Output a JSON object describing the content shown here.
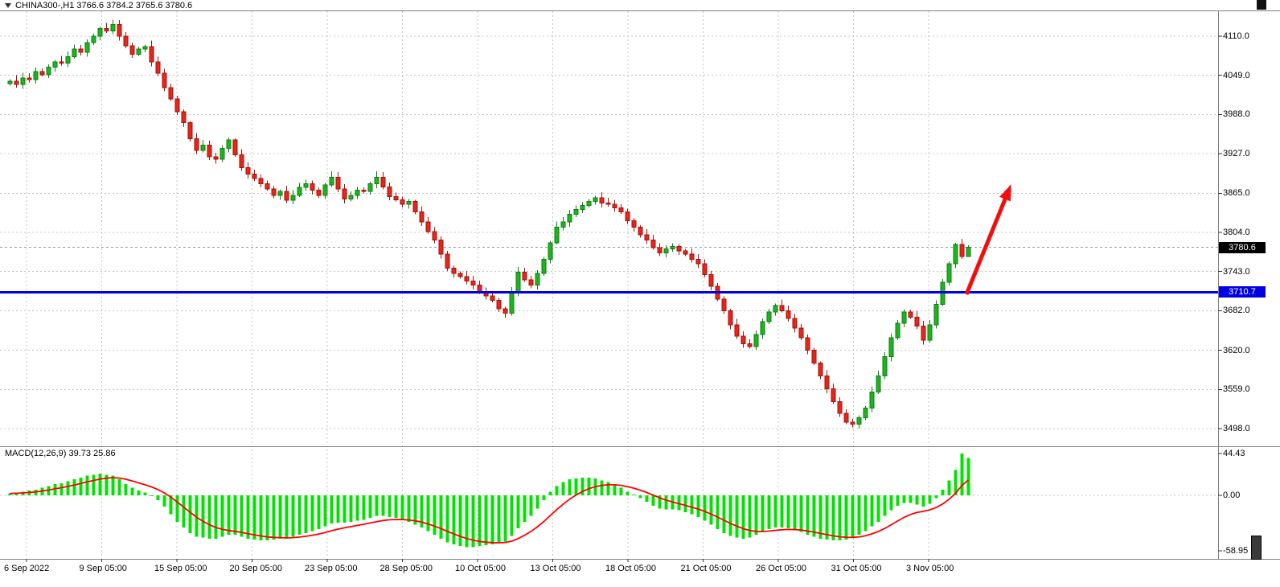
{
  "colors": {
    "bull_body": "#1fb41f",
    "bull_border": "#0c7d12",
    "bear_body": "#e8251c",
    "bear_border": "#a31109",
    "support_line": "#0000e0",
    "current_price_line": "#9a9a9a",
    "grid": "#c4c4c4",
    "histogram": "#00e300",
    "signal_line": "#ff0000",
    "arrow": "#f40d0d",
    "price_tag_bg": "#000000",
    "support_tag_bg": "#0000e0",
    "frame": "#808080"
  },
  "chart_data": [
    {
      "id": "price-pane",
      "type": "candlestick",
      "title": "CHINA300-,H1",
      "symbol": "CHINA300-",
      "timeframe": "H1",
      "legend_text": "CHINA300-,H1 3766.6 3784.2 3765.6 3780.6",
      "current_candle": {
        "open": 3766.6,
        "high": 3784.2,
        "low": 3765.6,
        "close": 3780.6
      },
      "current_price": 3780.6,
      "current_price_label": "3780.6",
      "support_line_price": 3710.7,
      "support_line_label": "3710.7",
      "y_ticks": [
        4110.0,
        4049.0,
        3988.0,
        3927.0,
        3865.0,
        3804.0,
        3743.0,
        3682.0,
        3620.0,
        3559.0,
        3498.0
      ],
      "x_labels": [
        "6 Sep 2022",
        "9 Sep 05:00",
        "15 Sep 05:00",
        "20 Sep 05:00",
        "23 Sep 05:00",
        "28 Sep 05:00",
        "10 Oct 05:00",
        "13 Oct 05:00",
        "18 Oct 05:00",
        "21 Oct 05:00",
        "26 Oct 05:00",
        "31 Oct 05:00",
        "3 Nov 05:00"
      ],
      "first_open": 4036,
      "closes": [
        4040,
        4035,
        4045,
        4042,
        4055,
        4050,
        4062,
        4070,
        4068,
        4078,
        4090,
        4085,
        4100,
        4110,
        4122,
        4118,
        4128,
        4110,
        4095,
        4082,
        4090,
        4094,
        4070,
        4052,
        4030,
        4012,
        3992,
        3975,
        3950,
        3932,
        3940,
        3922,
        3918,
        3935,
        3948,
        3925,
        3905,
        3895,
        3888,
        3880,
        3872,
        3862,
        3868,
        3854,
        3862,
        3874,
        3880,
        3870,
        3862,
        3878,
        3890,
        3872,
        3856,
        3862,
        3870,
        3868,
        3880,
        3890,
        3875,
        3860,
        3855,
        3848,
        3852,
        3836,
        3820,
        3805,
        3792,
        3770,
        3748,
        3740,
        3735,
        3728,
        3722,
        3712,
        3705,
        3698,
        3685,
        3678,
        3710,
        3742,
        3730,
        3722,
        3740,
        3762,
        3788,
        3812,
        3820,
        3832,
        3840,
        3846,
        3852,
        3858,
        3850,
        3848,
        3842,
        3836,
        3822,
        3812,
        3800,
        3792,
        3780,
        3772,
        3778,
        3782,
        3775,
        3770,
        3762,
        3755,
        3738,
        3720,
        3700,
        3682,
        3660,
        3642,
        3630,
        3626,
        3645,
        3665,
        3680,
        3690,
        3682,
        3670,
        3655,
        3640,
        3620,
        3600,
        3580,
        3560,
        3540,
        3522,
        3508,
        3505,
        3515,
        3530,
        3555,
        3580,
        3610,
        3640,
        3662,
        3680,
        3672,
        3658,
        3636,
        3660,
        3692,
        3726,
        3755,
        3785,
        3766.6,
        3780.6
      ],
      "last_candle_ohlc": [
        3766.6,
        3784.2,
        3765.6,
        3780.6
      ],
      "annotations": {
        "trend_arrow": {
          "direction": "up-right",
          "color": "#f40d0d"
        }
      }
    },
    {
      "id": "macd-pane",
      "type": "bar",
      "title": "MACD(12,26,9)",
      "legend_text": "MACD(12,26,9) 39.73 25.86",
      "main_value": 39.73,
      "signal_value": 25.86,
      "y_ticks": [
        44.43,
        0.0,
        -58.95
      ],
      "histogram": [
        2,
        3,
        4,
        5,
        6,
        8,
        10,
        12,
        13,
        15,
        17,
        19,
        21,
        22,
        23,
        22,
        21,
        17,
        12,
        8,
        5,
        3,
        0,
        -5,
        -12,
        -20,
        -28,
        -34,
        -40,
        -44,
        -45,
        -46,
        -46,
        -44,
        -42,
        -42,
        -44,
        -46,
        -47,
        -48,
        -48,
        -47,
        -46,
        -46,
        -44,
        -42,
        -40,
        -38,
        -36,
        -33,
        -30,
        -29,
        -29,
        -28,
        -27,
        -26,
        -24,
        -22,
        -22,
        -23,
        -24,
        -26,
        -28,
        -31,
        -34,
        -38,
        -42,
        -46,
        -50,
        -52,
        -54,
        -55,
        -55,
        -54,
        -53,
        -52,
        -51,
        -49,
        -43,
        -35,
        -28,
        -22,
        -14,
        -5,
        4,
        10,
        14,
        17,
        18,
        19,
        19,
        18,
        16,
        14,
        11,
        8,
        4,
        1,
        -3,
        -7,
        -11,
        -14,
        -15,
        -15,
        -16,
        -18,
        -20,
        -23,
        -27,
        -31,
        -36,
        -40,
        -43,
        -45,
        -46,
        -45,
        -42,
        -39,
        -36,
        -34,
        -34,
        -35,
        -37,
        -39,
        -42,
        -44,
        -46,
        -47,
        -48,
        -48,
        -47,
        -45,
        -42,
        -38,
        -33,
        -28,
        -22,
        -16,
        -11,
        -8,
        -8,
        -10,
        -12,
        -9,
        -3,
        6,
        16,
        27,
        44.43,
        39.73
      ],
      "signal_method": "ema-9"
    }
  ]
}
